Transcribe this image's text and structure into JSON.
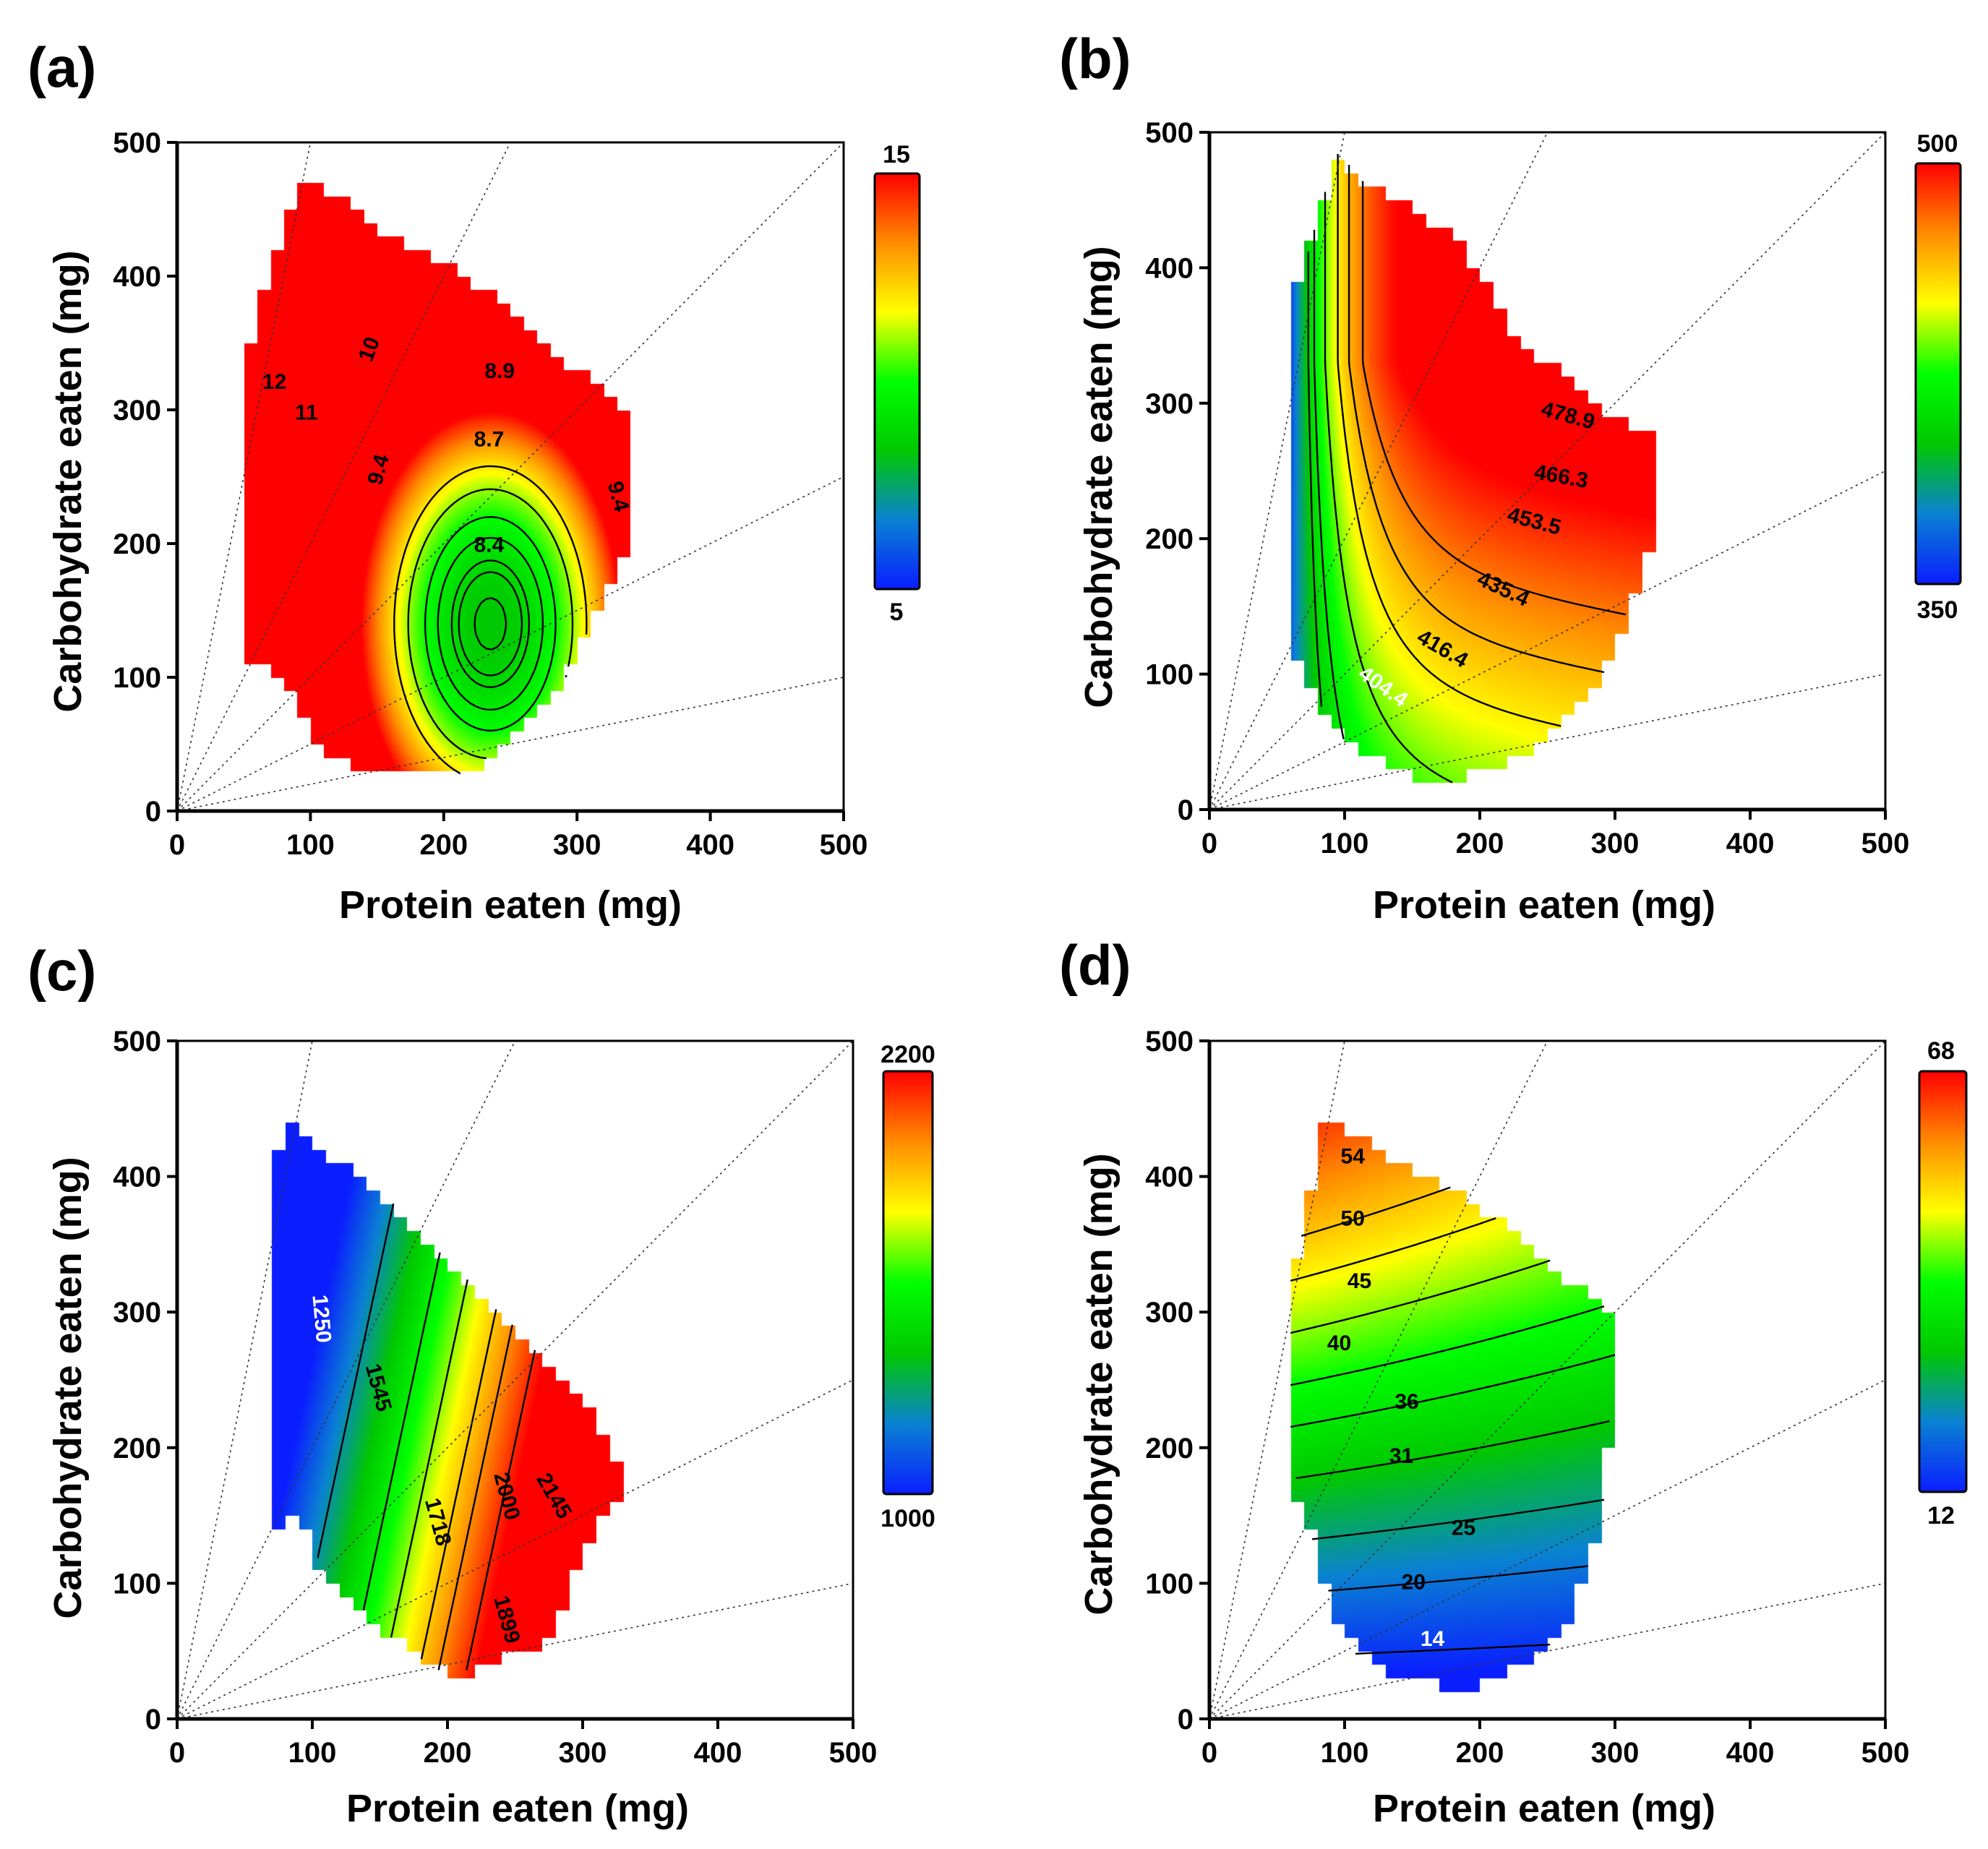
{
  "figure": {
    "x_axis_title": "Protein eaten (mg)",
    "y_axis_title": "Carbohydrate eaten (mg)",
    "x_ticks": [
      0,
      100,
      200,
      300,
      400,
      500
    ],
    "y_ticks": [
      0,
      100,
      200,
      300,
      400,
      500
    ],
    "colormap": [
      "#0a1eff",
      "#0a82d2",
      "#00c800",
      "#00ff00",
      "#ffff00",
      "#ff8c00",
      "#ff0000"
    ]
  },
  "chart_data": [
    {
      "panel": "(a)",
      "type": "heatmap",
      "xlabel": "Protein eaten (mg)",
      "ylabel": "Carbohydrate eaten (mg)",
      "xlim": [
        0,
        500
      ],
      "ylim": [
        0,
        500
      ],
      "grid": false,
      "colorbar": {
        "min": 5,
        "max": 15,
        "min_label": "5",
        "max_label": "15"
      },
      "surface": {
        "type": "ellipse",
        "center": [
          235,
          140
        ],
        "sx": 130,
        "sy": 520,
        "min_value": 8.3
      },
      "region": [
        [
          50,
          110
        ],
        [
          50,
          335
        ],
        [
          75,
          420
        ],
        [
          95,
          475
        ],
        [
          110,
          470
        ],
        [
          120,
          460
        ],
        [
          160,
          430
        ],
        [
          200,
          410
        ],
        [
          250,
          375
        ],
        [
          300,
          330
        ],
        [
          330,
          310
        ],
        [
          345,
          280
        ],
        [
          345,
          200
        ],
        [
          330,
          180
        ],
        [
          320,
          160
        ],
        [
          300,
          120
        ],
        [
          280,
          80
        ],
        [
          250,
          50
        ],
        [
          220,
          30
        ],
        [
          200,
          25
        ],
        [
          150,
          30
        ],
        [
          120,
          40
        ],
        [
          100,
          60
        ],
        [
          80,
          100
        ],
        [
          60,
          110
        ]
      ],
      "contours": [
        {
          "level": 8.4,
          "label": "8.4",
          "label_at": [
            234,
            198
          ],
          "label_rot": 0
        },
        {
          "level": 8.7,
          "label": "8.7",
          "label_at": [
            234,
            277
          ],
          "label_rot": 0
        },
        {
          "level": 8.9,
          "label": "8.9",
          "label_at": [
            242,
            328
          ],
          "label_rot": 0
        },
        {
          "level": 9.4,
          "label": "9.4",
          "label_at": [
            152,
            255
          ],
          "label_rot": -75
        },
        {
          "level": 9.4,
          "label": "9.4",
          "label_at": [
            330,
            235
          ],
          "label_rot": 75
        },
        {
          "level": 10,
          "label": "10",
          "label_at": [
            145,
            345
          ],
          "label_rot": -70
        },
        {
          "level": 11,
          "label": "11",
          "label_at": [
            97,
            297
          ],
          "label_rot": 0
        },
        {
          "level": 12,
          "label": "12",
          "label_at": [
            73,
            320
          ],
          "label_rot": 0
        }
      ],
      "rays": [
        [
          100,
          500
        ],
        [
          250,
          500
        ],
        [
          500,
          500
        ],
        [
          500,
          250
        ],
        [
          500,
          100
        ]
      ]
    },
    {
      "panel": "(b)",
      "type": "heatmap",
      "xlabel": "Protein eaten (mg)",
      "ylabel": "Carbohydrate eaten (mg)",
      "xlim": [
        0,
        500
      ],
      "ylim": [
        0,
        500
      ],
      "grid": false,
      "colorbar": {
        "min": 350,
        "max": 500,
        "min_label": "350",
        "max_label": "500"
      },
      "surface": {
        "type": "valley",
        "a": 380,
        "b": 0.0009,
        "c": 4,
        "x0": 65,
        "y_drop": 0.0035,
        "y_pow": 2,
        "yc": 0
      },
      "region": [
        [
          60,
          140
        ],
        [
          60,
          370
        ],
        [
          70,
          400
        ],
        [
          85,
          450
        ],
        [
          93,
          485
        ],
        [
          110,
          465
        ],
        [
          150,
          445
        ],
        [
          180,
          425
        ],
        [
          200,
          395
        ],
        [
          220,
          360
        ],
        [
          250,
          330
        ],
        [
          300,
          290
        ],
        [
          330,
          275
        ],
        [
          330,
          200
        ],
        [
          320,
          170
        ],
        [
          300,
          120
        ],
        [
          280,
          80
        ],
        [
          250,
          50
        ],
        [
          220,
          35
        ],
        [
          180,
          20
        ],
        [
          150,
          25
        ],
        [
          120,
          40
        ],
        [
          100,
          50
        ],
        [
          80,
          80
        ],
        [
          65,
          110
        ]
      ],
      "contours": [
        {
          "level": 404.4,
          "label": "404.4",
          "label_at": [
            128,
            90
          ],
          "label_rot": 35
        },
        {
          "level": 416.4,
          "label": "416.4",
          "label_at": [
            172,
            118
          ],
          "label_rot": 30
        },
        {
          "level": 435.4,
          "label": "435.4",
          "label_at": [
            217,
            162
          ],
          "label_rot": 25
        },
        {
          "level": 453.5,
          "label": "453.5",
          "label_at": [
            240,
            212
          ],
          "label_rot": 15
        },
        {
          "level": 466.3,
          "label": "466.3",
          "label_at": [
            260,
            245
          ],
          "label_rot": 10
        },
        {
          "level": 478.9,
          "label": "478.9",
          "label_at": [
            265,
            290
          ],
          "label_rot": 15
        }
      ],
      "rays": [
        [
          100,
          500
        ],
        [
          250,
          500
        ],
        [
          500,
          500
        ],
        [
          500,
          250
        ],
        [
          500,
          100
        ]
      ]
    },
    {
      "panel": "(c)",
      "type": "heatmap",
      "xlabel": "Protein eaten (mg)",
      "ylabel": "Carbohydrate eaten (mg)",
      "xlim": [
        0,
        500
      ],
      "ylim": [
        0,
        500
      ],
      "grid": false,
      "colorbar": {
        "min": 1000,
        "max": 2200,
        "min_label": "1000",
        "max_label": "2200"
      },
      "surface": {
        "type": "linear",
        "base": 1000,
        "kx": 7,
        "ky": -1.5,
        "offset": -300
      },
      "region": [
        [
          70,
          140
        ],
        [
          70,
          400
        ],
        [
          80,
          440
        ],
        [
          90,
          440
        ],
        [
          120,
          410
        ],
        [
          145,
          395
        ],
        [
          170,
          370
        ],
        [
          200,
          340
        ],
        [
          240,
          300
        ],
        [
          270,
          270
        ],
        [
          300,
          240
        ],
        [
          330,
          180
        ],
        [
          330,
          170
        ],
        [
          300,
          120
        ],
        [
          280,
          70
        ],
        [
          270,
          50
        ],
        [
          240,
          45
        ],
        [
          220,
          35
        ],
        [
          200,
          35
        ],
        [
          180,
          45
        ],
        [
          160,
          60
        ],
        [
          140,
          80
        ],
        [
          110,
          100
        ],
        [
          90,
          150
        ]
      ],
      "contours": [
        {
          "level": 1250,
          "label": "1250",
          "label_at": [
            106,
            295
          ],
          "label_rot": 85
        },
        {
          "level": 1545,
          "label": "1545",
          "label_at": [
            148,
            244
          ],
          "label_rot": 75
        },
        {
          "level": 1718,
          "label": "1718",
          "label_at": [
            192,
            145
          ],
          "label_rot": 75
        },
        {
          "level": 1899,
          "label": "1899",
          "label_at": [
            243,
            73
          ],
          "label_rot": 75
        },
        {
          "level": 2000,
          "label": "2000",
          "label_at": [
            243,
            164
          ],
          "label_rot": 75
        },
        {
          "level": 2145,
          "label": "2145",
          "label_at": [
            278,
            164
          ],
          "label_rot": 60
        }
      ],
      "rays": [
        [
          100,
          500
        ],
        [
          250,
          500
        ],
        [
          500,
          500
        ],
        [
          500,
          250
        ],
        [
          500,
          100
        ]
      ]
    },
    {
      "panel": "(d)",
      "type": "heatmap",
      "xlabel": "Protein eaten (mg)",
      "ylabel": "Carbohydrate eaten (mg)",
      "xlim": [
        0,
        500
      ],
      "ylim": [
        0,
        500
      ],
      "grid": false,
      "colorbar": {
        "min": 12,
        "max": 68,
        "min_label": "12",
        "max_label": "68"
      },
      "surface": {
        "type": "tilted",
        "base": 0,
        "ky": 0.13,
        "kx": 0.055,
        "x0": 60
      },
      "region": [
        [
          60,
          210
        ],
        [
          60,
          320
        ],
        [
          70,
          360
        ],
        [
          80,
          420
        ],
        [
          85,
          440
        ],
        [
          100,
          435
        ],
        [
          140,
          410
        ],
        [
          180,
          390
        ],
        [
          230,
          360
        ],
        [
          270,
          320
        ],
        [
          300,
          300
        ],
        [
          300,
          250
        ],
        [
          295,
          200
        ],
        [
          290,
          150
        ],
        [
          280,
          110
        ],
        [
          260,
          60
        ],
        [
          230,
          40
        ],
        [
          200,
          25
        ],
        [
          170,
          25
        ],
        [
          140,
          30
        ],
        [
          110,
          50
        ],
        [
          90,
          80
        ],
        [
          75,
          140
        ],
        [
          65,
          160
        ]
      ],
      "contours": [
        {
          "level": 14,
          "label": "14",
          "label_at": [
            165,
            58
          ],
          "label_rot": 0
        },
        {
          "level": 20,
          "label": "20",
          "label_at": [
            151,
            100
          ],
          "label_rot": 0
        },
        {
          "level": 25,
          "label": "25",
          "label_at": [
            188,
            140
          ],
          "label_rot": 0
        },
        {
          "level": 31,
          "label": "31",
          "label_at": [
            142,
            193
          ],
          "label_rot": 0
        },
        {
          "level": 36,
          "label": "36",
          "label_at": [
            146,
            233
          ],
          "label_rot": 0
        },
        {
          "level": 40,
          "label": "40",
          "label_at": [
            96,
            276
          ],
          "label_rot": 0
        },
        {
          "level": 45,
          "label": "45",
          "label_at": [
            111,
            322
          ],
          "label_rot": 0
        },
        {
          "level": 50,
          "label": "50",
          "label_at": [
            106,
            368
          ],
          "label_rot": 0
        },
        {
          "level": 54,
          "label": "54",
          "label_at": [
            106,
            414
          ],
          "label_rot": 0
        }
      ],
      "rays": [
        [
          100,
          500
        ],
        [
          250,
          500
        ],
        [
          500,
          500
        ],
        [
          500,
          250
        ],
        [
          500,
          100
        ]
      ]
    }
  ]
}
